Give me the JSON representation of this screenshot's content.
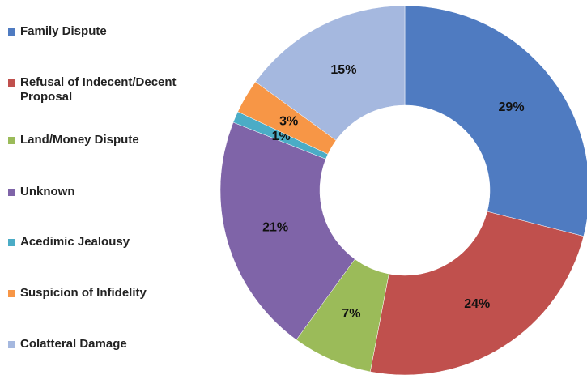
{
  "chart_data": {
    "type": "donut",
    "categories": [
      "Family Dispute",
      "Refusal of Indecent/Decent Proposal",
      "Land/Money Dispute",
      "Unknown",
      "Acedimic Jealousy",
      "Suspicion of Infidelity",
      "Colatteral Damage"
    ],
    "values": [
      29,
      24,
      7,
      21,
      1,
      3,
      15
    ],
    "value_labels": [
      "29%",
      "24%",
      "7%",
      "21%",
      "1%",
      "3%",
      "15%"
    ],
    "colors": [
      "#4f7bc1",
      "#c0504d",
      "#9bbb59",
      "#7f64a8",
      "#4bacc6",
      "#f79646",
      "#a5b8df"
    ],
    "legend": "left"
  }
}
